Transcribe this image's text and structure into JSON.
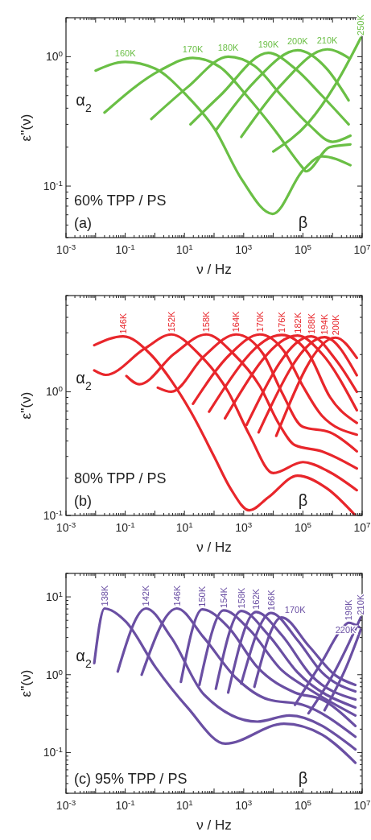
{
  "chart_data": [
    {
      "type": "line",
      "log": "xy",
      "xlabel": "ν / Hz",
      "ylabel": "ε''(ν)",
      "xlim": [
        0.001,
        10000000
      ],
      "ylim": [
        0.04,
        2
      ],
      "xticks": [
        {
          "value": 0.001,
          "label": "10$^{-3}$"
        },
        {
          "value": 0.01,
          "label": null
        },
        {
          "value": 0.1,
          "label": "10$^{-1}$"
        },
        {
          "value": 1,
          "label": null
        },
        {
          "value": 10,
          "label": "10$^{1}$"
        },
        {
          "value": 100,
          "label": null
        },
        {
          "value": 1000,
          "label": "10$^{3}$"
        },
        {
          "value": 10000,
          "label": null
        },
        {
          "value": 100000,
          "label": "10$^{5}$"
        },
        {
          "value": 1000000,
          "label": null
        },
        {
          "value": 10000000,
          "label": "10$^{7}$"
        }
      ],
      "yticks": [
        {
          "value": 0.1,
          "label": "10$^{-1}$"
        },
        {
          "value": 1,
          "label": "10$^{0}$"
        }
      ],
      "annotations": [
        "α$_{2}$",
        "β",
        "60% TPP / PS",
        "(a)"
      ],
      "series": [
        {
          "name": "160K",
          "color": "#6abf45",
          "x": [
            0.01,
            0.1,
            1,
            12,
            100,
            830,
            9500,
            100000,
            440000,
            4000000
          ],
          "values": [
            0.78,
            0.91,
            0.81,
            0.5,
            0.28,
            0.114,
            0.061,
            0.132,
            0.17,
            0.145
          ]
        },
        {
          "name": "170K",
          "color": "#6abf45",
          "x": [
            0.02,
            1.6,
            19,
            160,
            1260,
            10000,
            100000,
            126000,
            800000,
            4000000
          ],
          "values": [
            0.37,
            0.79,
            0.98,
            0.83,
            0.5,
            0.28,
            0.138,
            0.13,
            0.2,
            0.21
          ]
        },
        {
          "name": "180K",
          "color": "#6abf45",
          "x": [
            0.76,
            12.6,
            300,
            2300,
            19000,
            155000,
            1000000,
            4000000
          ],
          "values": [
            0.33,
            0.58,
            1.0,
            0.85,
            0.5,
            0.3,
            0.22,
            0.245
          ]
        },
        {
          "name": "190K",
          "color": "#6abf45",
          "x": [
            16,
            160,
            6800,
            54000,
            440000,
            3500000
          ],
          "values": [
            0.3,
            0.5,
            1.07,
            0.81,
            0.5,
            0.3
          ]
        },
        {
          "name": "200K",
          "color": "#6abf45",
          "x": [
            115,
            2300,
            66000,
            630000,
            3500000
          ],
          "values": [
            0.27,
            0.64,
            1.12,
            0.81,
            0.46
          ]
        },
        {
          "name": "210K",
          "color": "#6abf45",
          "x": [
            830,
            19000,
            660000,
            3500000
          ],
          "values": [
            0.24,
            0.61,
            1.14,
            0.98
          ]
        },
        {
          "name": "250K",
          "color": "#6abf45",
          "x": [
            10000,
            155000,
            1260000,
            9000000
          ],
          "values": [
            0.185,
            0.31,
            0.61,
            1.4
          ]
        }
      ]
    },
    {
      "type": "line",
      "log": "xy",
      "xlabel": "ν / Hz",
      "ylabel": "ε''(ν)",
      "xlim": [
        0.001,
        10000000
      ],
      "ylim": [
        0.1,
        6
      ],
      "xticks": [
        {
          "value": 0.001,
          "label": "10$^{-3}$"
        },
        {
          "value": 0.01,
          "label": null
        },
        {
          "value": 0.1,
          "label": "10$^{-1}$"
        },
        {
          "value": 1,
          "label": null
        },
        {
          "value": 10,
          "label": "10$^{1}$"
        },
        {
          "value": 100,
          "label": null
        },
        {
          "value": 1000,
          "label": "10$^{3}$"
        },
        {
          "value": 10000,
          "label": null
        },
        {
          "value": 100000,
          "label": "10$^{5}$"
        },
        {
          "value": 1000000,
          "label": null
        },
        {
          "value": 10000000,
          "label": "10$^{7}$"
        }
      ],
      "yticks": [
        {
          "value": 0.1,
          "label": "10$^{-1}$"
        },
        {
          "value": 1,
          "label": "10$^{0}$"
        }
      ],
      "annotations": [
        "α$_{2}$",
        "β",
        "80% TPP / PS",
        "(b)"
      ],
      "series": [
        {
          "name": "146K",
          "color": "#e8262b",
          "x": [
            0.009,
            0.085,
            0.69,
            3.6,
            19.5,
            100,
            360,
            1550,
            6800,
            66000,
            660000,
            5900000
          ],
          "values": [
            2.38,
            2.81,
            2.03,
            1.23,
            0.64,
            0.3,
            0.165,
            0.11,
            0.14,
            0.21,
            0.165,
            0.1
          ]
        },
        {
          "name": "152K",
          "color": "#e8262b",
          "x": [
            0.009,
            0.022,
            0.46,
            3.6,
            30,
            300,
            1550,
            10000,
            100000,
            660000,
            6600000
          ],
          "values": [
            1.49,
            1.37,
            2.24,
            2.91,
            2.03,
            1.0,
            0.45,
            0.22,
            0.27,
            0.23,
            0.16
          ]
        },
        {
          "name": "158K",
          "color": "#e8262b",
          "x": [
            0.11,
            0.3,
            4.5,
            55,
            450,
            3500,
            15500,
            54000,
            440000,
            6600000
          ],
          "values": [
            1.34,
            1.15,
            2.03,
            2.91,
            2.03,
            1.11,
            0.55,
            0.37,
            0.33,
            0.24
          ]
        },
        {
          "name": "164K",
          "color": "#e8262b",
          "x": [
            1.26,
            3.6,
            45,
            550,
            4500,
            19000,
            100000,
            810000,
            6600000
          ],
          "values": [
            1.08,
            1.0,
            1.93,
            2.91,
            2.03,
            1.0,
            0.52,
            0.47,
            0.33
          ]
        },
        {
          "name": "170K",
          "color": "#e8262b",
          "x": [
            19.5,
            360,
            3500,
            23000,
            100000,
            440000,
            6600000
          ],
          "values": [
            0.8,
            2.03,
            2.91,
            2.13,
            1.11,
            0.64,
            0.45
          ]
        },
        {
          "name": "176K",
          "color": "#e8262b",
          "x": [
            68,
            19000,
            155000,
            810000,
            6600000
          ],
          "values": [
            0.69,
            2.88,
            2.03,
            0.91,
            0.56
          ]
        },
        {
          "name": "182K",
          "color": "#e8262b",
          "x": [
            234,
            66000,
            440000,
            6600000
          ],
          "values": [
            0.61,
            2.85,
            2.03,
            0.71
          ]
        },
        {
          "name": "188K",
          "color": "#e8262b",
          "x": [
            1260,
            190000,
            1260000,
            6600000
          ],
          "values": [
            0.54,
            2.81,
            1.83,
            1.0
          ]
        },
        {
          "name": "194K",
          "color": "#e8262b",
          "x": [
            3200,
            540000,
            6600000
          ],
          "values": [
            0.47,
            2.77,
            1.36
          ]
        },
        {
          "name": "200K",
          "color": "#e8262b",
          "x": [
            12600,
            1260000,
            6600000
          ],
          "values": [
            0.44,
            2.74,
            1.88
          ]
        }
      ]
    },
    {
      "type": "line",
      "log": "xy",
      "xlabel": "ν / Hz",
      "ylabel": "ε''(ν)",
      "xlim": [
        0.001,
        10000000
      ],
      "ylim": [
        0.03,
        20
      ],
      "xticks": [
        {
          "value": 0.001,
          "label": "10$^{-3}$"
        },
        {
          "value": 0.01,
          "label": null
        },
        {
          "value": 0.1,
          "label": "10$^{-1}$"
        },
        {
          "value": 1,
          "label": null
        },
        {
          "value": 10,
          "label": "10$^{1}$"
        },
        {
          "value": 100,
          "label": null
        },
        {
          "value": 1000,
          "label": "10$^{3}$"
        },
        {
          "value": 10000,
          "label": null
        },
        {
          "value": 100000,
          "label": "10$^{5}$"
        },
        {
          "value": 1000000,
          "label": null
        },
        {
          "value": 10000000,
          "label": "10$^{7}$"
        }
      ],
      "yticks": [
        {
          "value": 0.1,
          "label": "10$^{-1}$"
        },
        {
          "value": 1,
          "label": "10$^{0}$"
        },
        {
          "value": 10,
          "label": "10$^{1}$"
        }
      ],
      "annotations": [
        "α$_{2}$",
        "β",
        "(c)  95% TPP / PS"
      ],
      "series": [
        {
          "name": "138K",
          "color": "#6a4fa3",
          "x": [
            0.009,
            0.02,
            0.105,
            1.05,
            12.6,
            240,
            23000,
            440000,
            5900000
          ],
          "values": [
            1.41,
            7.1,
            4.8,
            1.25,
            0.38,
            0.13,
            0.235,
            0.17,
            0.074
          ]
        },
        {
          "name": "142K",
          "color": "#6a4fa3",
          "x": [
            0.056,
            0.5,
            3.6,
            45,
            2900,
            35000,
            5900000
          ],
          "values": [
            1.1,
            7.1,
            3.0,
            0.56,
            0.25,
            0.3,
            0.11
          ]
        },
        {
          "name": "146K",
          "color": "#6a4fa3",
          "x": [
            0.36,
            5.5,
            45,
            550,
            6800,
            100000,
            5900000
          ],
          "values": [
            1.0,
            7.1,
            3.0,
            0.91,
            0.48,
            0.41,
            0.16
          ]
        },
        {
          "name": "150K",
          "color": "#6a4fa3",
          "x": [
            7.6,
            40,
            300,
            2900,
            54000,
            440000,
            5900000
          ],
          "values": [
            0.81,
            6.9,
            4.1,
            1.25,
            0.59,
            0.48,
            0.22
          ]
        },
        {
          "name": "154K",
          "color": "#6a4fa3",
          "x": [
            32,
            210,
            1550,
            19000,
            155000,
            5900000
          ],
          "values": [
            0.74,
            6.7,
            3.8,
            1.15,
            0.66,
            0.3
          ]
        },
        {
          "name": "158K",
          "color": "#6a4fa3",
          "x": [
            115,
            830,
            6800,
            66000,
            5900000
          ],
          "values": [
            0.66,
            6.6,
            3.25,
            1.07,
            0.38
          ]
        },
        {
          "name": "162K",
          "color": "#6a4fa3",
          "x": [
            300,
            2600,
            19000,
            190000,
            5900000
          ],
          "values": [
            0.59,
            6.4,
            3.25,
            0.98,
            0.48
          ]
        },
        {
          "name": "166K",
          "color": "#6a4fa3",
          "x": [
            830,
            8300,
            66000,
            440000,
            5900000
          ],
          "values": [
            0.77,
            6.2,
            2.77,
            1.07,
            0.61
          ]
        },
        {
          "name": "170K",
          "color": "#6a4fa3",
          "x": [
            2300,
            19000,
            155000,
            1260000,
            5900000
          ],
          "values": [
            0.7,
            5.45,
            2.36,
            0.98,
            0.74
          ]
        },
        {
          "name": "198K",
          "color": "#6a4fa3",
          "x": [
            54000,
            440000,
            2300000,
            3500000,
            8000000
          ],
          "values": [
            0.41,
            1.47,
            4.1,
            4.65,
            4.1
          ]
        },
        {
          "name": "210K",
          "color": "#6a4fa3",
          "x": [
            155000,
            1260000,
            9000000
          ],
          "values": [
            0.32,
            1.15,
            5.45
          ]
        },
        {
          "name": "220K",
          "color": "#6a4fa3",
          "x": [
            540000,
            2900000,
            9000000
          ],
          "values": [
            0.35,
            1.25,
            3.8
          ]
        }
      ]
    }
  ]
}
